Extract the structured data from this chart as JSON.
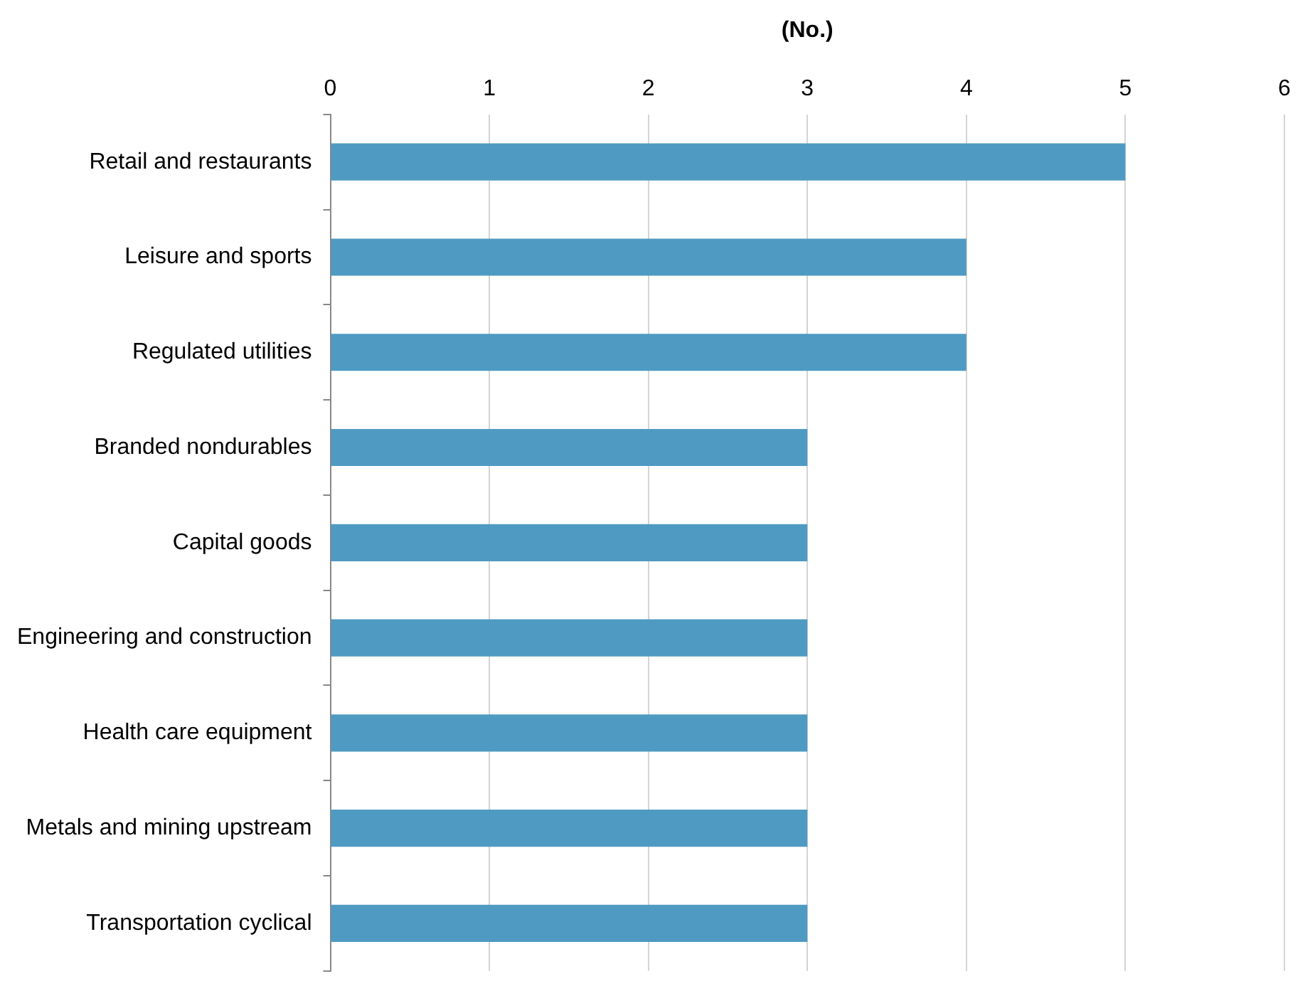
{
  "chart_data": {
    "type": "bar",
    "orientation": "horizontal",
    "xlabel": "(No.)",
    "categories": [
      "Retail and restaurants",
      "Leisure and sports",
      "Regulated utilities",
      "Branded nondurables",
      "Capital goods",
      "Engineering and construction",
      "Health care equipment",
      "Metals and mining upstream",
      "Transportation cyclical"
    ],
    "values": [
      5,
      4,
      4,
      3,
      3,
      3,
      3,
      3,
      3
    ],
    "color": "#4f9ac2",
    "xlim": [
      0,
      6
    ],
    "xticks": [
      0,
      1,
      2,
      3,
      4,
      5,
      6
    ],
    "grid": "x",
    "legend": false
  }
}
